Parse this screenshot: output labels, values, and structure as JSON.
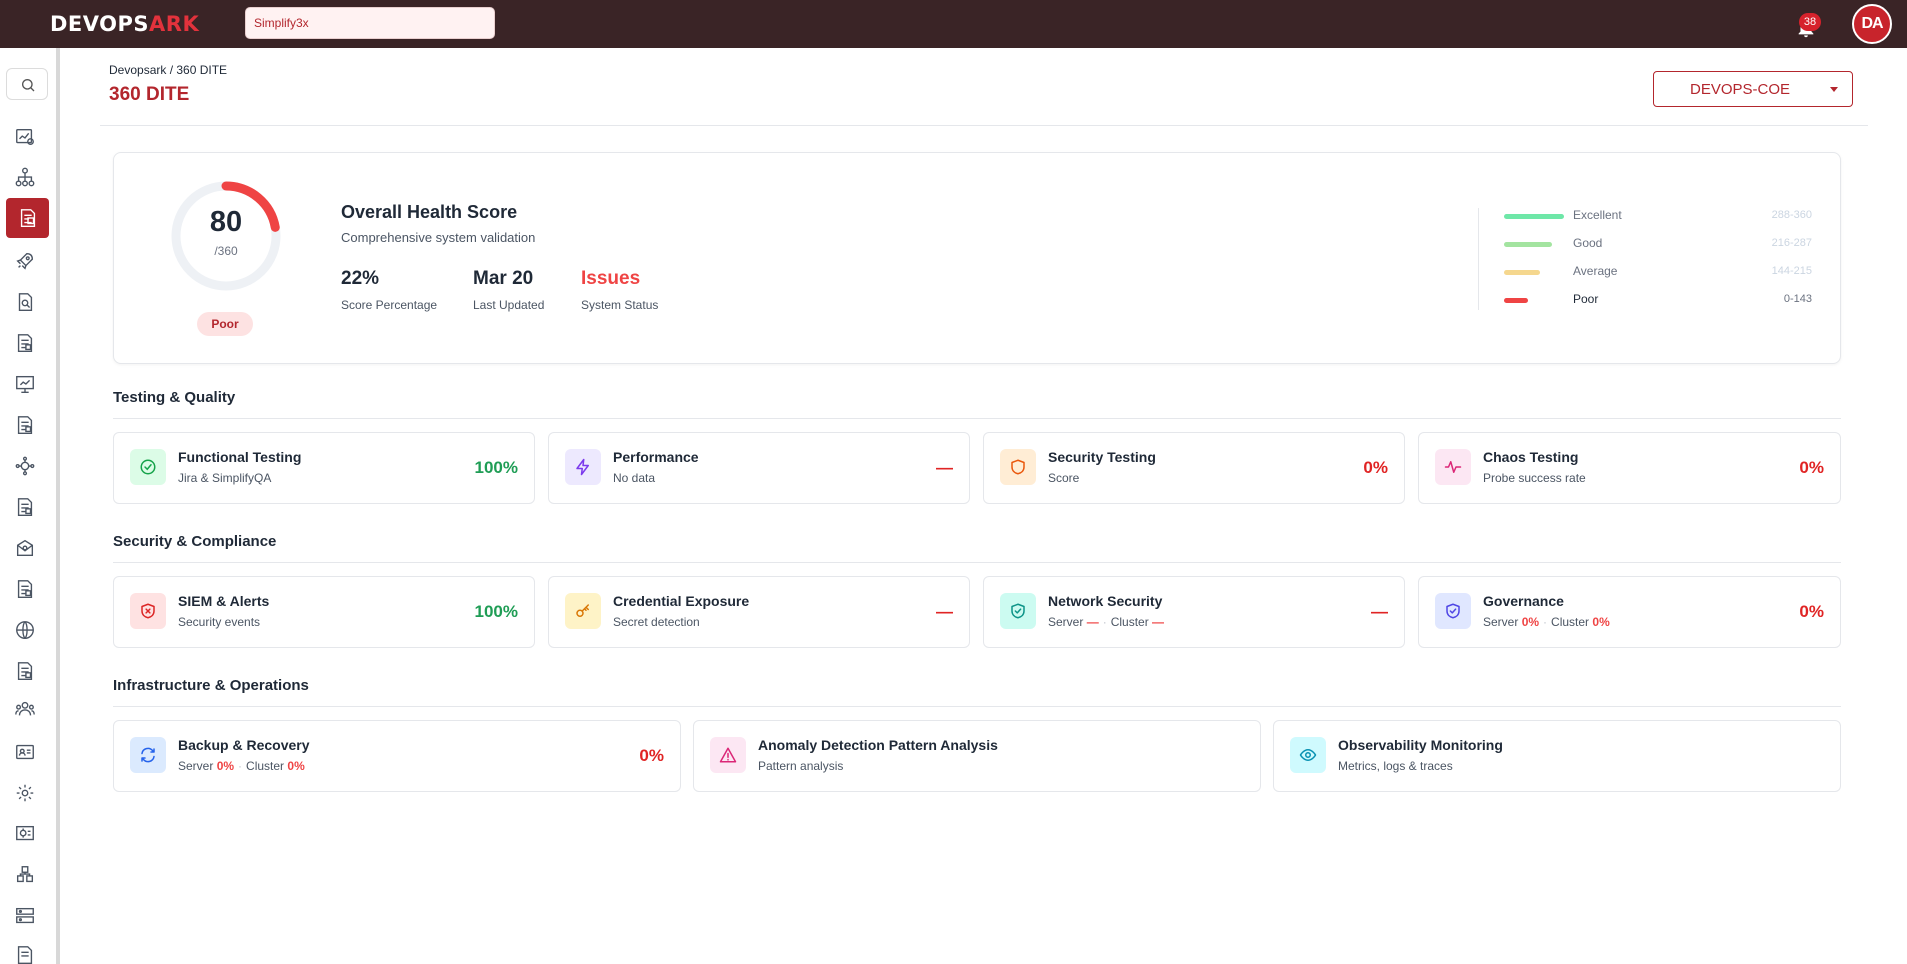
{
  "app": {
    "logo_main": "DEVOPS",
    "logo_accent": "ARK"
  },
  "topbar": {
    "search_value": "Simplify3x",
    "notification_count": "38",
    "avatar_initials": "DA"
  },
  "header": {
    "breadcrumb": "Devopsark / 360 DITE",
    "title": "360 DITE",
    "org_selector": "DEVOPS-COE"
  },
  "health": {
    "score": "80",
    "max": "/360",
    "score_fraction": 0.222,
    "status_badge": "Poor",
    "title": "Overall Health Score",
    "subtitle": "Comprehensive system validation",
    "stats": [
      {
        "value": "22%",
        "label": "Score Percentage"
      },
      {
        "value": "Mar 20",
        "label": "Last Updated"
      },
      {
        "value": "Issues",
        "label": "System Status"
      }
    ],
    "legend": [
      {
        "name": "Excellent",
        "range": "288-360",
        "color": "#6ee7a8"
      },
      {
        "name": "Good",
        "range": "216-287",
        "color": "#a3e4a0"
      },
      {
        "name": "Average",
        "range": "144-215",
        "color": "#f5d78e"
      },
      {
        "name": "Poor",
        "range": "0-143",
        "color": "#ef4444"
      }
    ]
  },
  "sections": [
    {
      "title": "Testing & Quality",
      "cards": [
        {
          "title": "Functional Testing",
          "subtitle": "Jira & SimplifyQA",
          "value": "100%",
          "icon": "check-circle-icon",
          "icon_color": "#16a34a",
          "icon_bg": "#dcfce7"
        },
        {
          "title": "Performance",
          "subtitle": "No data",
          "value": "—",
          "icon": "lightning-icon",
          "icon_color": "#7c3aed",
          "icon_bg": "#ede9fe"
        },
        {
          "title": "Security Testing",
          "subtitle": "Score",
          "value": "0%",
          "icon": "shield-icon",
          "icon_color": "#ea580c",
          "icon_bg": "#ffedd5"
        },
        {
          "title": "Chaos Testing",
          "subtitle": "Probe success rate",
          "value": "0%",
          "icon": "pulse-icon",
          "icon_color": "#db2777",
          "icon_bg": "#fce7f3"
        }
      ]
    },
    {
      "title": "Security & Compliance",
      "cards": [
        {
          "title": "SIEM & Alerts",
          "subtitle": "Security events",
          "value": "100%",
          "icon": "shield-x-icon",
          "icon_color": "#dc2626",
          "icon_bg": "#fee2e2"
        },
        {
          "title": "Credential Exposure",
          "subtitle": "Secret detection",
          "value": "—",
          "icon": "key-icon",
          "icon_color": "#d97706",
          "icon_bg": "#fef3c7"
        },
        {
          "title": "Network Security",
          "sub_a_label": "Server",
          "sub_a_value": "—",
          "sub_b_label": "Cluster",
          "sub_b_value": "—",
          "value": "—",
          "icon": "shield-check-icon",
          "icon_color": "#0d9488",
          "icon_bg": "#ccfbf1"
        },
        {
          "title": "Governance",
          "sub_a_label": "Server",
          "sub_a_value": "0%",
          "sub_b_label": "Cluster",
          "sub_b_value": "0%",
          "value": "0%",
          "icon": "shield-check-icon",
          "icon_color": "#4f46e5",
          "icon_bg": "#e0e7ff"
        }
      ]
    },
    {
      "title": "Infrastructure & Operations",
      "cards": [
        {
          "title": "Backup & Recovery",
          "sub_a_label": "Server",
          "sub_a_value": "0%",
          "sub_b_label": "Cluster",
          "sub_b_value": "0%",
          "value": "0%",
          "icon": "refresh-icon",
          "icon_color": "#2563eb",
          "icon_bg": "#dbeafe"
        },
        {
          "title": "Anomaly Detection Pattern Analysis",
          "subtitle": "Pattern analysis",
          "icon": "warning-icon",
          "icon_color": "#db2777",
          "icon_bg": "#fce7f3"
        },
        {
          "title": "Observability Monitoring",
          "subtitle": "Metrics, logs & traces",
          "icon": "eye-icon",
          "icon_color": "#0891b2",
          "icon_bg": "#cffafe"
        }
      ]
    }
  ]
}
